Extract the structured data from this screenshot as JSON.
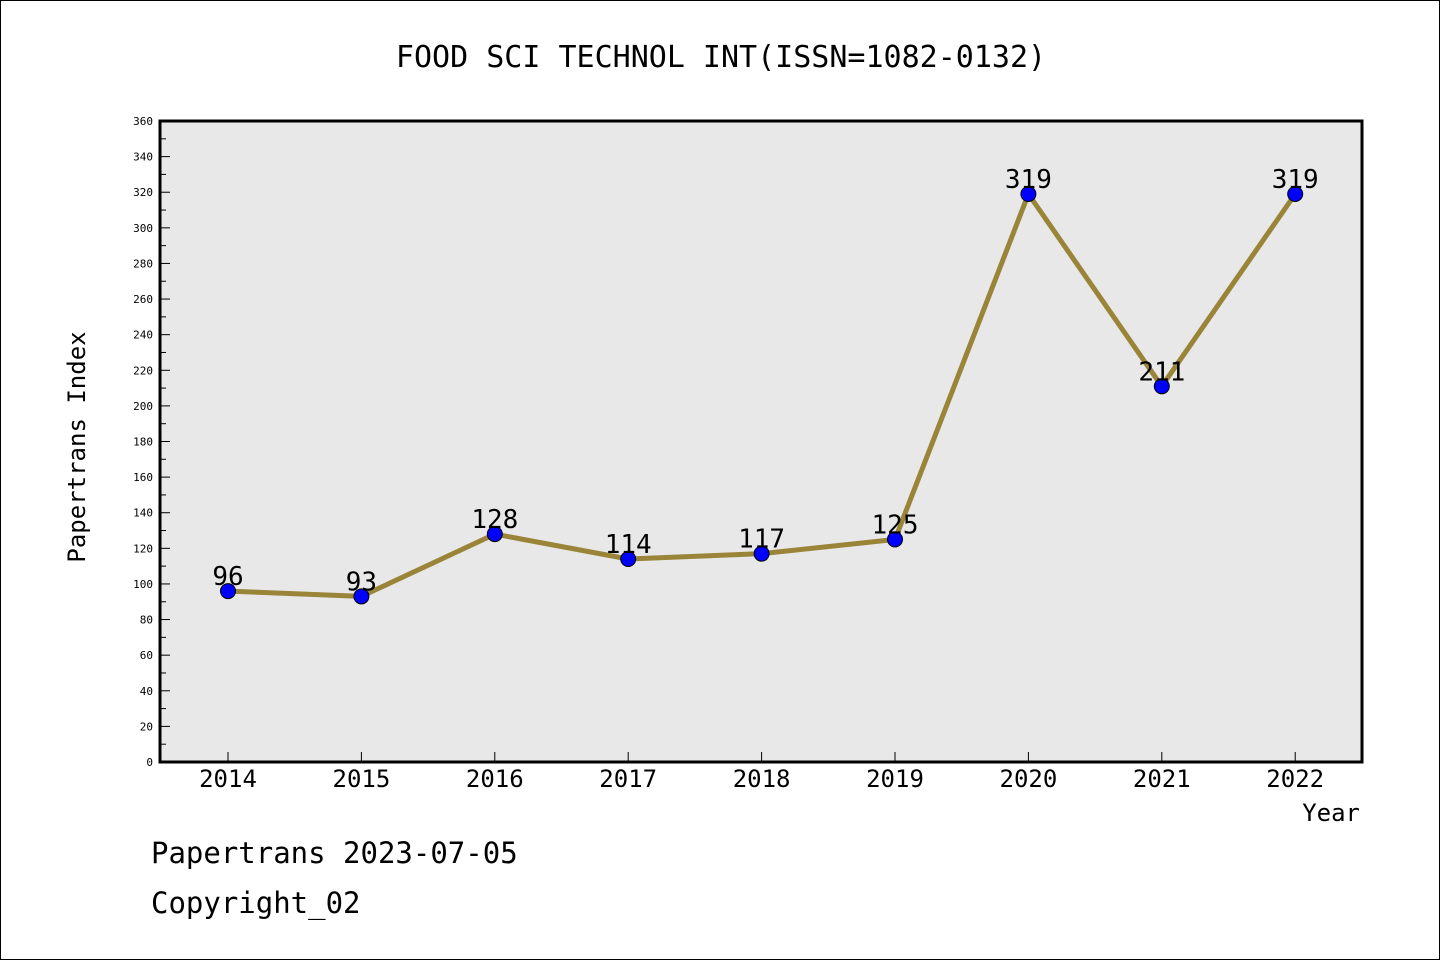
{
  "chart_data": {
    "type": "line",
    "title": "FOOD SCI TECHNOL INT(ISSN=1082-0132)",
    "xlabel": "Year",
    "ylabel": "Papertrans Index",
    "categories": [
      "2014",
      "2015",
      "2016",
      "2017",
      "2018",
      "2019",
      "2020",
      "2021",
      "2022"
    ],
    "series": [
      {
        "values": [
          96,
          93,
          128,
          114,
          117,
          125,
          319,
          211,
          319
        ]
      }
    ],
    "data_labels": [
      "96",
      "93",
      "128",
      "114",
      "117",
      "125",
      "319",
      "211",
      "319"
    ],
    "ylim": [
      0,
      360
    ],
    "y_ticks": [
      "0",
      "20",
      "40",
      "60",
      "80",
      "100",
      "120",
      "140",
      "160",
      "180",
      "200",
      "220",
      "240",
      "260",
      "280",
      "300",
      "320",
      "340",
      "360"
    ],
    "grid": false,
    "legend": "none",
    "colors": {
      "line": "#9a8438",
      "marker": "#0000ff",
      "plot_background": "#e8e8e8"
    }
  },
  "footer": {
    "line1": "Papertrans 2023-07-05",
    "line2": "Copyright_02"
  }
}
